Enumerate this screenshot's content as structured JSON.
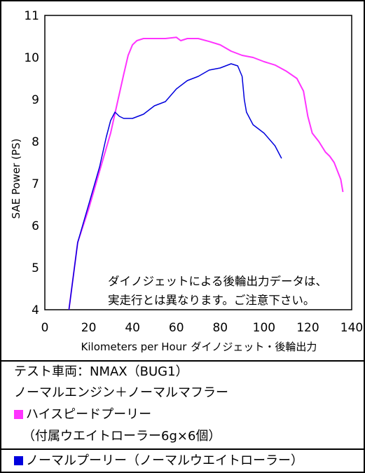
{
  "chart_data": {
    "type": "line",
    "xlabel": "Kilometers per Hour",
    "xlabel_suffix": "ダイノジェット・後輪出力",
    "ylabel": "SAE Power (PS)",
    "xlim": [
      0,
      140
    ],
    "ylim": [
      4,
      11
    ],
    "x_ticks": [
      "0",
      "20",
      "40",
      "60",
      "80",
      "100",
      "120",
      "140"
    ],
    "y_ticks": [
      "4",
      "5",
      "6",
      "7",
      "8",
      "9",
      "10",
      "11"
    ],
    "grid": false,
    "annotation": [
      "ダイノジェットによる後輪出力データは、",
      "実走行とは異なります。ご注意下さい。"
    ],
    "series": [
      {
        "name": "ハイスピードプーリー",
        "color": "#ff33ff",
        "x": [
          11,
          15,
          20,
          25,
          30,
          33,
          36,
          38,
          40,
          42,
          45,
          50,
          55,
          60,
          62,
          65,
          70,
          75,
          80,
          85,
          90,
          95,
          100,
          105,
          110,
          115,
          118,
          120,
          122,
          125,
          128,
          130,
          132,
          135,
          136
        ],
        "y": [
          4.0,
          5.6,
          6.4,
          7.3,
          8.2,
          8.9,
          9.6,
          10.05,
          10.3,
          10.4,
          10.45,
          10.45,
          10.45,
          10.48,
          10.4,
          10.45,
          10.45,
          10.38,
          10.3,
          10.15,
          10.05,
          10.0,
          9.9,
          9.82,
          9.68,
          9.5,
          9.2,
          8.6,
          8.2,
          8.0,
          7.75,
          7.65,
          7.5,
          7.1,
          6.8
        ]
      },
      {
        "name": "ノーマルプーリー",
        "color": "#0000dd",
        "x": [
          11,
          15,
          20,
          25,
          28,
          30,
          32,
          34,
          36,
          40,
          45,
          50,
          55,
          60,
          65,
          70,
          75,
          80,
          85,
          88,
          90,
          91,
          92,
          95,
          100,
          105,
          108
        ],
        "y": [
          4.0,
          5.6,
          6.5,
          7.4,
          8.1,
          8.5,
          8.7,
          8.6,
          8.55,
          8.55,
          8.65,
          8.85,
          8.95,
          9.25,
          9.45,
          9.55,
          9.7,
          9.75,
          9.85,
          9.8,
          9.55,
          9.0,
          8.7,
          8.4,
          8.2,
          7.9,
          7.6
        ]
      }
    ]
  },
  "legend": {
    "line1": "テスト車両：NMAX（BUG1）",
    "line2": "ノーマルエンジン＋ノーマルマフラー",
    "item_high_speed": "ハイスピードプーリー",
    "item_high_speed_detail": "（付属ウエイトローラー6g×6個）",
    "item_normal": "ノーマルプーリー（ノーマルウエイトローラー）",
    "high_speed_color": "#ff33ff",
    "normal_color": "#0000dd"
  }
}
